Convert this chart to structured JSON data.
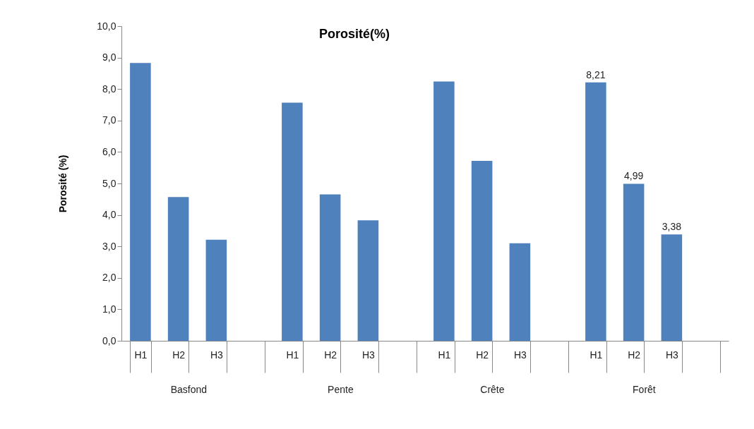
{
  "chart_data": {
    "type": "bar",
    "title": "Porosité(%)",
    "ylabel": "Porosité (%)",
    "categories": [
      "H1",
      "H2",
      "H3",
      null,
      "H1",
      "H2",
      "H3",
      null,
      "H1",
      "H2",
      "H3",
      null,
      "H1",
      "H2",
      "H3",
      null
    ],
    "series": [
      {
        "color": "#4f81bd",
        "values": [
          8.83,
          4.57,
          3.21,
          null,
          7.57,
          4.65,
          3.83,
          null,
          8.24,
          5.72,
          3.1,
          null,
          8.21,
          4.99,
          3.38,
          null
        ],
        "value_labels": [
          null,
          null,
          null,
          null,
          null,
          null,
          null,
          null,
          null,
          null,
          null,
          null,
          "8,21",
          "4,99",
          "3,38",
          null
        ]
      }
    ],
    "annotations": [
      "Basfond",
      "Pente",
      "Crête",
      "Forêt"
    ],
    "ylim": [
      0,
      10
    ],
    "yticks": [
      {
        "value": 0,
        "label": "0,0"
      },
      {
        "value": 1,
        "label": "1,0"
      },
      {
        "value": 2,
        "label": "2,0"
      },
      {
        "value": 3,
        "label": "3,0"
      },
      {
        "value": 4,
        "label": "4,0"
      },
      {
        "value": 5,
        "label": "5,0"
      },
      {
        "value": 6,
        "label": "6,0"
      },
      {
        "value": 7,
        "label": "7,0"
      },
      {
        "value": 8,
        "label": "8,0"
      },
      {
        "value": 9,
        "label": "9,0"
      },
      {
        "value": 10,
        "label": "10,0"
      }
    ],
    "grid": false
  }
}
